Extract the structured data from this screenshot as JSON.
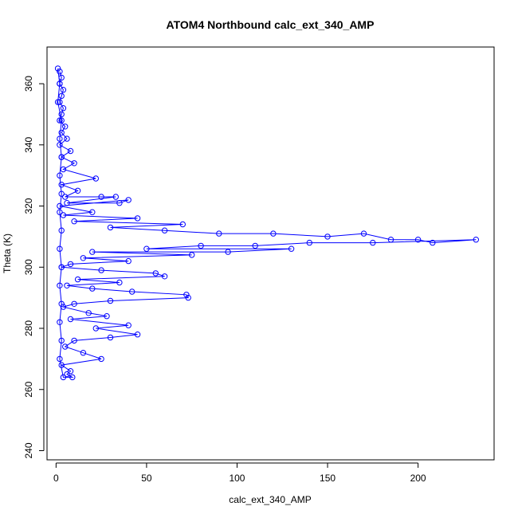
{
  "chart_data": {
    "type": "scatter",
    "title": "ATOM4 Northbound calc_ext_340_AMP",
    "xlabel": "calc_ext_340_AMP",
    "ylabel": "Theta (K)",
    "xlim": [
      -5,
      242
    ],
    "ylim": [
      237,
      372
    ],
    "x_ticks": [
      0,
      50,
      100,
      150,
      200
    ],
    "y_ticks": [
      240,
      260,
      280,
      300,
      320,
      340,
      360
    ],
    "grid": false,
    "marker": "open-circle",
    "connected": true,
    "color": "#0000ff",
    "series": [
      {
        "points": [
          [
            2,
            364
          ],
          [
            3,
            362
          ],
          [
            2,
            360
          ],
          [
            4,
            358
          ],
          [
            3,
            356
          ],
          [
            2,
            354
          ],
          [
            4,
            352
          ],
          [
            3,
            350
          ],
          [
            2,
            348
          ],
          [
            5,
            346
          ],
          [
            3,
            344
          ],
          [
            6,
            342
          ],
          [
            2,
            340
          ],
          [
            8,
            338
          ],
          [
            3,
            336
          ],
          [
            10,
            334
          ],
          [
            4,
            332
          ],
          [
            22,
            329
          ],
          [
            3,
            327
          ],
          [
            12,
            325
          ],
          [
            5,
            323
          ],
          [
            25,
            323
          ],
          [
            33,
            323
          ],
          [
            6,
            321
          ],
          [
            35,
            321
          ],
          [
            40,
            322
          ],
          [
            2,
            320
          ],
          [
            20,
            318
          ],
          [
            4,
            317
          ],
          [
            45,
            316
          ],
          [
            10,
            315
          ],
          [
            70,
            314
          ],
          [
            30,
            313
          ],
          [
            60,
            312
          ],
          [
            90,
            311
          ],
          [
            120,
            311
          ],
          [
            150,
            310
          ],
          [
            170,
            311
          ],
          [
            185,
            309
          ],
          [
            200,
            309
          ],
          [
            208,
            308
          ],
          [
            232,
            309
          ],
          [
            175,
            308
          ],
          [
            140,
            308
          ],
          [
            110,
            307
          ],
          [
            80,
            307
          ],
          [
            50,
            306
          ],
          [
            130,
            306
          ],
          [
            95,
            305
          ],
          [
            20,
            305
          ],
          [
            75,
            304
          ],
          [
            15,
            303
          ],
          [
            40,
            302
          ],
          [
            8,
            301
          ],
          [
            3,
            300
          ],
          [
            25,
            299
          ],
          [
            55,
            298
          ],
          [
            60,
            297
          ],
          [
            12,
            296
          ],
          [
            35,
            295
          ],
          [
            6,
            294
          ],
          [
            20,
            293
          ],
          [
            42,
            292
          ],
          [
            72,
            291
          ],
          [
            73,
            290
          ],
          [
            30,
            289
          ],
          [
            10,
            288
          ],
          [
            4,
            287
          ],
          [
            18,
            285
          ],
          [
            28,
            284
          ],
          [
            8,
            283
          ],
          [
            40,
            281
          ],
          [
            22,
            280
          ],
          [
            45,
            278
          ],
          [
            30,
            277
          ],
          [
            10,
            276
          ],
          [
            5,
            274
          ],
          [
            15,
            272
          ],
          [
            25,
            270
          ],
          [
            3,
            268
          ],
          [
            8,
            266
          ],
          [
            6,
            265
          ],
          [
            9,
            264
          ],
          [
            4,
            264
          ],
          [
            2,
            270
          ],
          [
            3,
            276
          ],
          [
            2,
            282
          ],
          [
            3,
            288
          ],
          [
            2,
            294
          ],
          [
            3,
            300
          ],
          [
            2,
            306
          ],
          [
            3,
            312
          ],
          [
            2,
            318
          ],
          [
            3,
            324
          ],
          [
            2,
            330
          ],
          [
            3,
            336
          ],
          [
            2,
            342
          ],
          [
            3,
            348
          ],
          [
            1,
            354
          ],
          [
            2,
            360
          ],
          [
            1,
            365
          ]
        ]
      }
    ]
  }
}
